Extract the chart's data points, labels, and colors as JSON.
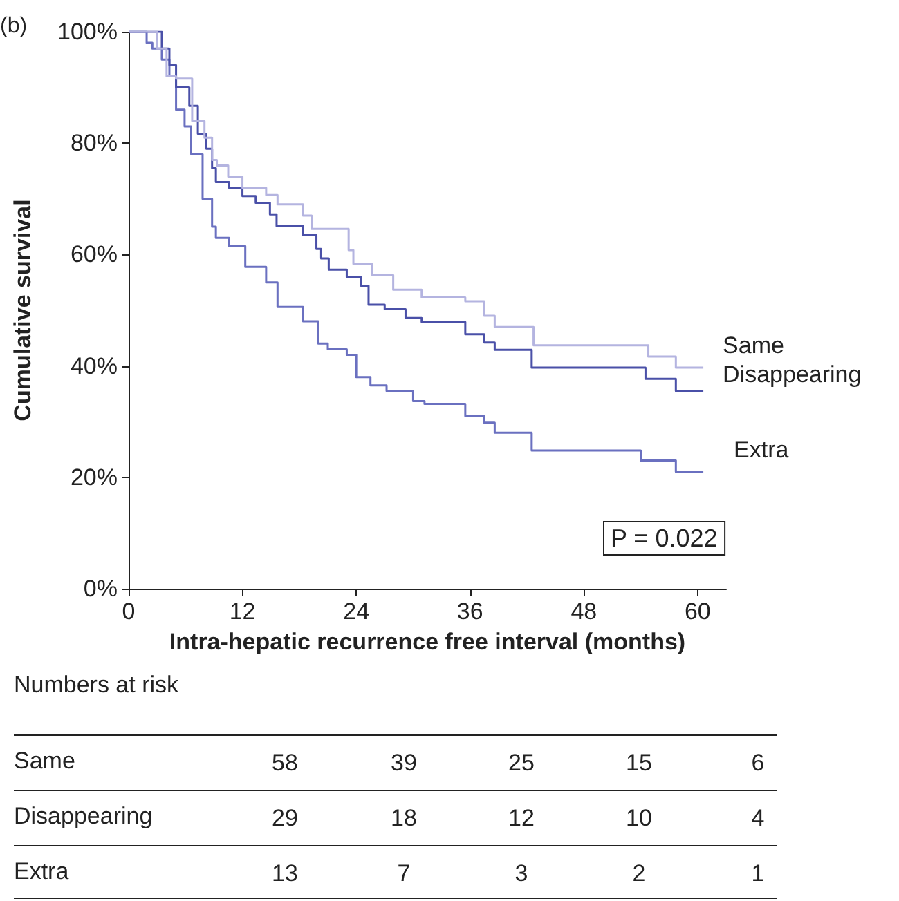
{
  "chart_data": {
    "type": "step",
    "xlabel": "Intra-hepatic recurrence free interval (months)",
    "ylabel": "Cumulative survival",
    "xlim": [
      0,
      63
    ],
    "xticks": [
      0,
      12,
      24,
      36,
      48,
      60
    ],
    "ylim": [
      0,
      100
    ],
    "yticks": [
      {
        "value": 0,
        "label": "0%"
      },
      {
        "value": 20,
        "label": "20%"
      },
      {
        "value": 40,
        "label": "40%"
      },
      {
        "value": 60,
        "label": "60%"
      },
      {
        "value": 80,
        "label": "80%"
      },
      {
        "value": 100,
        "label": "100%"
      }
    ],
    "grid": false,
    "legend": false,
    "marker": "none",
    "line_style": "solid",
    "series": [
      {
        "name": "Same",
        "color": "#b4b4e0",
        "x": [
          0,
          2,
          3,
          4,
          5,
          6.7,
          8,
          8.8,
          9.3,
          10.5,
          12,
          14.5,
          15.7,
          18.4,
          19.3,
          23.2,
          23.7,
          25.7,
          27.9,
          30.9,
          35.5,
          37.5,
          38.6,
          42.7,
          54.8,
          57.7,
          60.6
        ],
        "values": [
          100,
          100,
          97,
          92,
          91.6,
          84,
          81,
          77,
          76,
          74,
          72,
          70.7,
          69,
          67,
          64.6,
          60.8,
          58.3,
          56.3,
          53.7,
          52.3,
          51.6,
          49,
          47,
          43.7,
          41.7,
          39.7,
          39.7
        ]
      },
      {
        "name": "Disappearing",
        "color": "#4a50a8",
        "x": [
          0,
          3.5,
          4.3,
          5,
          6.4,
          7.3,
          8.2,
          8.8,
          9.2,
          10.6,
          12,
          13.4,
          14.9,
          15.6,
          18.4,
          19.8,
          20.3,
          21.1,
          23,
          24.5,
          25.3,
          27,
          29.2,
          30.9,
          35.5,
          37.5,
          38.6,
          42.5,
          54.5,
          57.7,
          60.6
        ],
        "values": [
          100,
          97,
          94,
          90,
          86.7,
          81.7,
          79,
          75.5,
          73,
          72,
          70.5,
          69.3,
          67.2,
          65.1,
          63.5,
          61,
          59.3,
          57.3,
          56,
          54.4,
          51,
          50.2,
          48.6,
          47.9,
          45.7,
          44.2,
          42.9,
          39.7,
          37.7,
          35.5,
          35.5
        ]
      },
      {
        "name": "Extra",
        "color": "#6a70c0",
        "x": [
          0,
          1.9,
          2.5,
          3.5,
          4.3,
          5,
          5.9,
          6.6,
          7.8,
          8.8,
          9.2,
          10.6,
          12.3,
          14.5,
          15.7,
          18.4,
          20,
          21,
          23,
          24,
          25.5,
          27.2,
          30,
          31.2,
          35.5,
          37.5,
          38.6,
          42.5,
          54,
          57.7,
          60.6
        ],
        "values": [
          100,
          98,
          97,
          95,
          92,
          86,
          83,
          78,
          70,
          65,
          63,
          61.5,
          57.8,
          55,
          50.6,
          48,
          44,
          43,
          42,
          38,
          36.5,
          35.5,
          33.7,
          33.2,
          31,
          29.8,
          28,
          24.8,
          23,
          21,
          21
        ]
      }
    ],
    "annotations": [
      "(b)",
      "P = 0.022",
      "Numbers at risk",
      "Same",
      "58",
      "39",
      "25",
      "15",
      "6",
      "Disappearing",
      "29",
      "18",
      "12",
      "10",
      "4",
      "Extra",
      "13",
      "7",
      "3",
      "2",
      "1"
    ]
  }
}
